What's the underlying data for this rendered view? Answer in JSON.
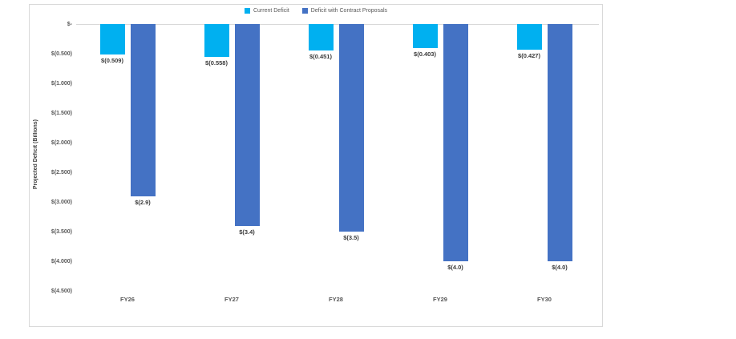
{
  "chart_data": {
    "type": "bar",
    "title": "",
    "xlabel": "",
    "ylabel": "Projected Deficit (Billions)",
    "categories": [
      "FY26",
      "FY27",
      "FY28",
      "FY29",
      "FY30"
    ],
    "series": [
      {
        "name": "Current Deficit",
        "color": "#00b0f0",
        "values": [
          -0.509,
          -0.558,
          -0.451,
          -0.403,
          -0.427
        ],
        "labels": [
          "$(0.509)",
          "$(0.558)",
          "$(0.451)",
          "$(0.403)",
          "$(0.427)"
        ]
      },
      {
        "name": "Deficit with Contract Proposals",
        "color": "#4472c4",
        "values": [
          -2.9,
          -3.4,
          -3.5,
          -4.0,
          -4.0
        ],
        "labels": [
          "$(2.9)",
          "$(3.4)",
          "$(3.5)",
          "$(4.0)",
          "$(4.0)"
        ]
      }
    ],
    "y_ticks": [
      "$-",
      "$(0.500)",
      "$(1.000)",
      "$(1.500)",
      "$(2.000)",
      "$(2.500)",
      "$(3.000)",
      "$(3.500)",
      "$(4.000)",
      "$(4.500)"
    ],
    "y_tick_values": [
      0,
      -0.5,
      -1.0,
      -1.5,
      -2.0,
      -2.5,
      -3.0,
      -3.5,
      -4.0,
      -4.5
    ],
    "ylim": [
      0,
      -4.5
    ],
    "legend_position": "top-center",
    "grid": false,
    "colors": {
      "axis_text": "#595959",
      "data_label": "#3b3b3b",
      "gridline": "#d9d9d9",
      "frame_border": "#d9d9d9",
      "background": "#ffffff"
    }
  }
}
